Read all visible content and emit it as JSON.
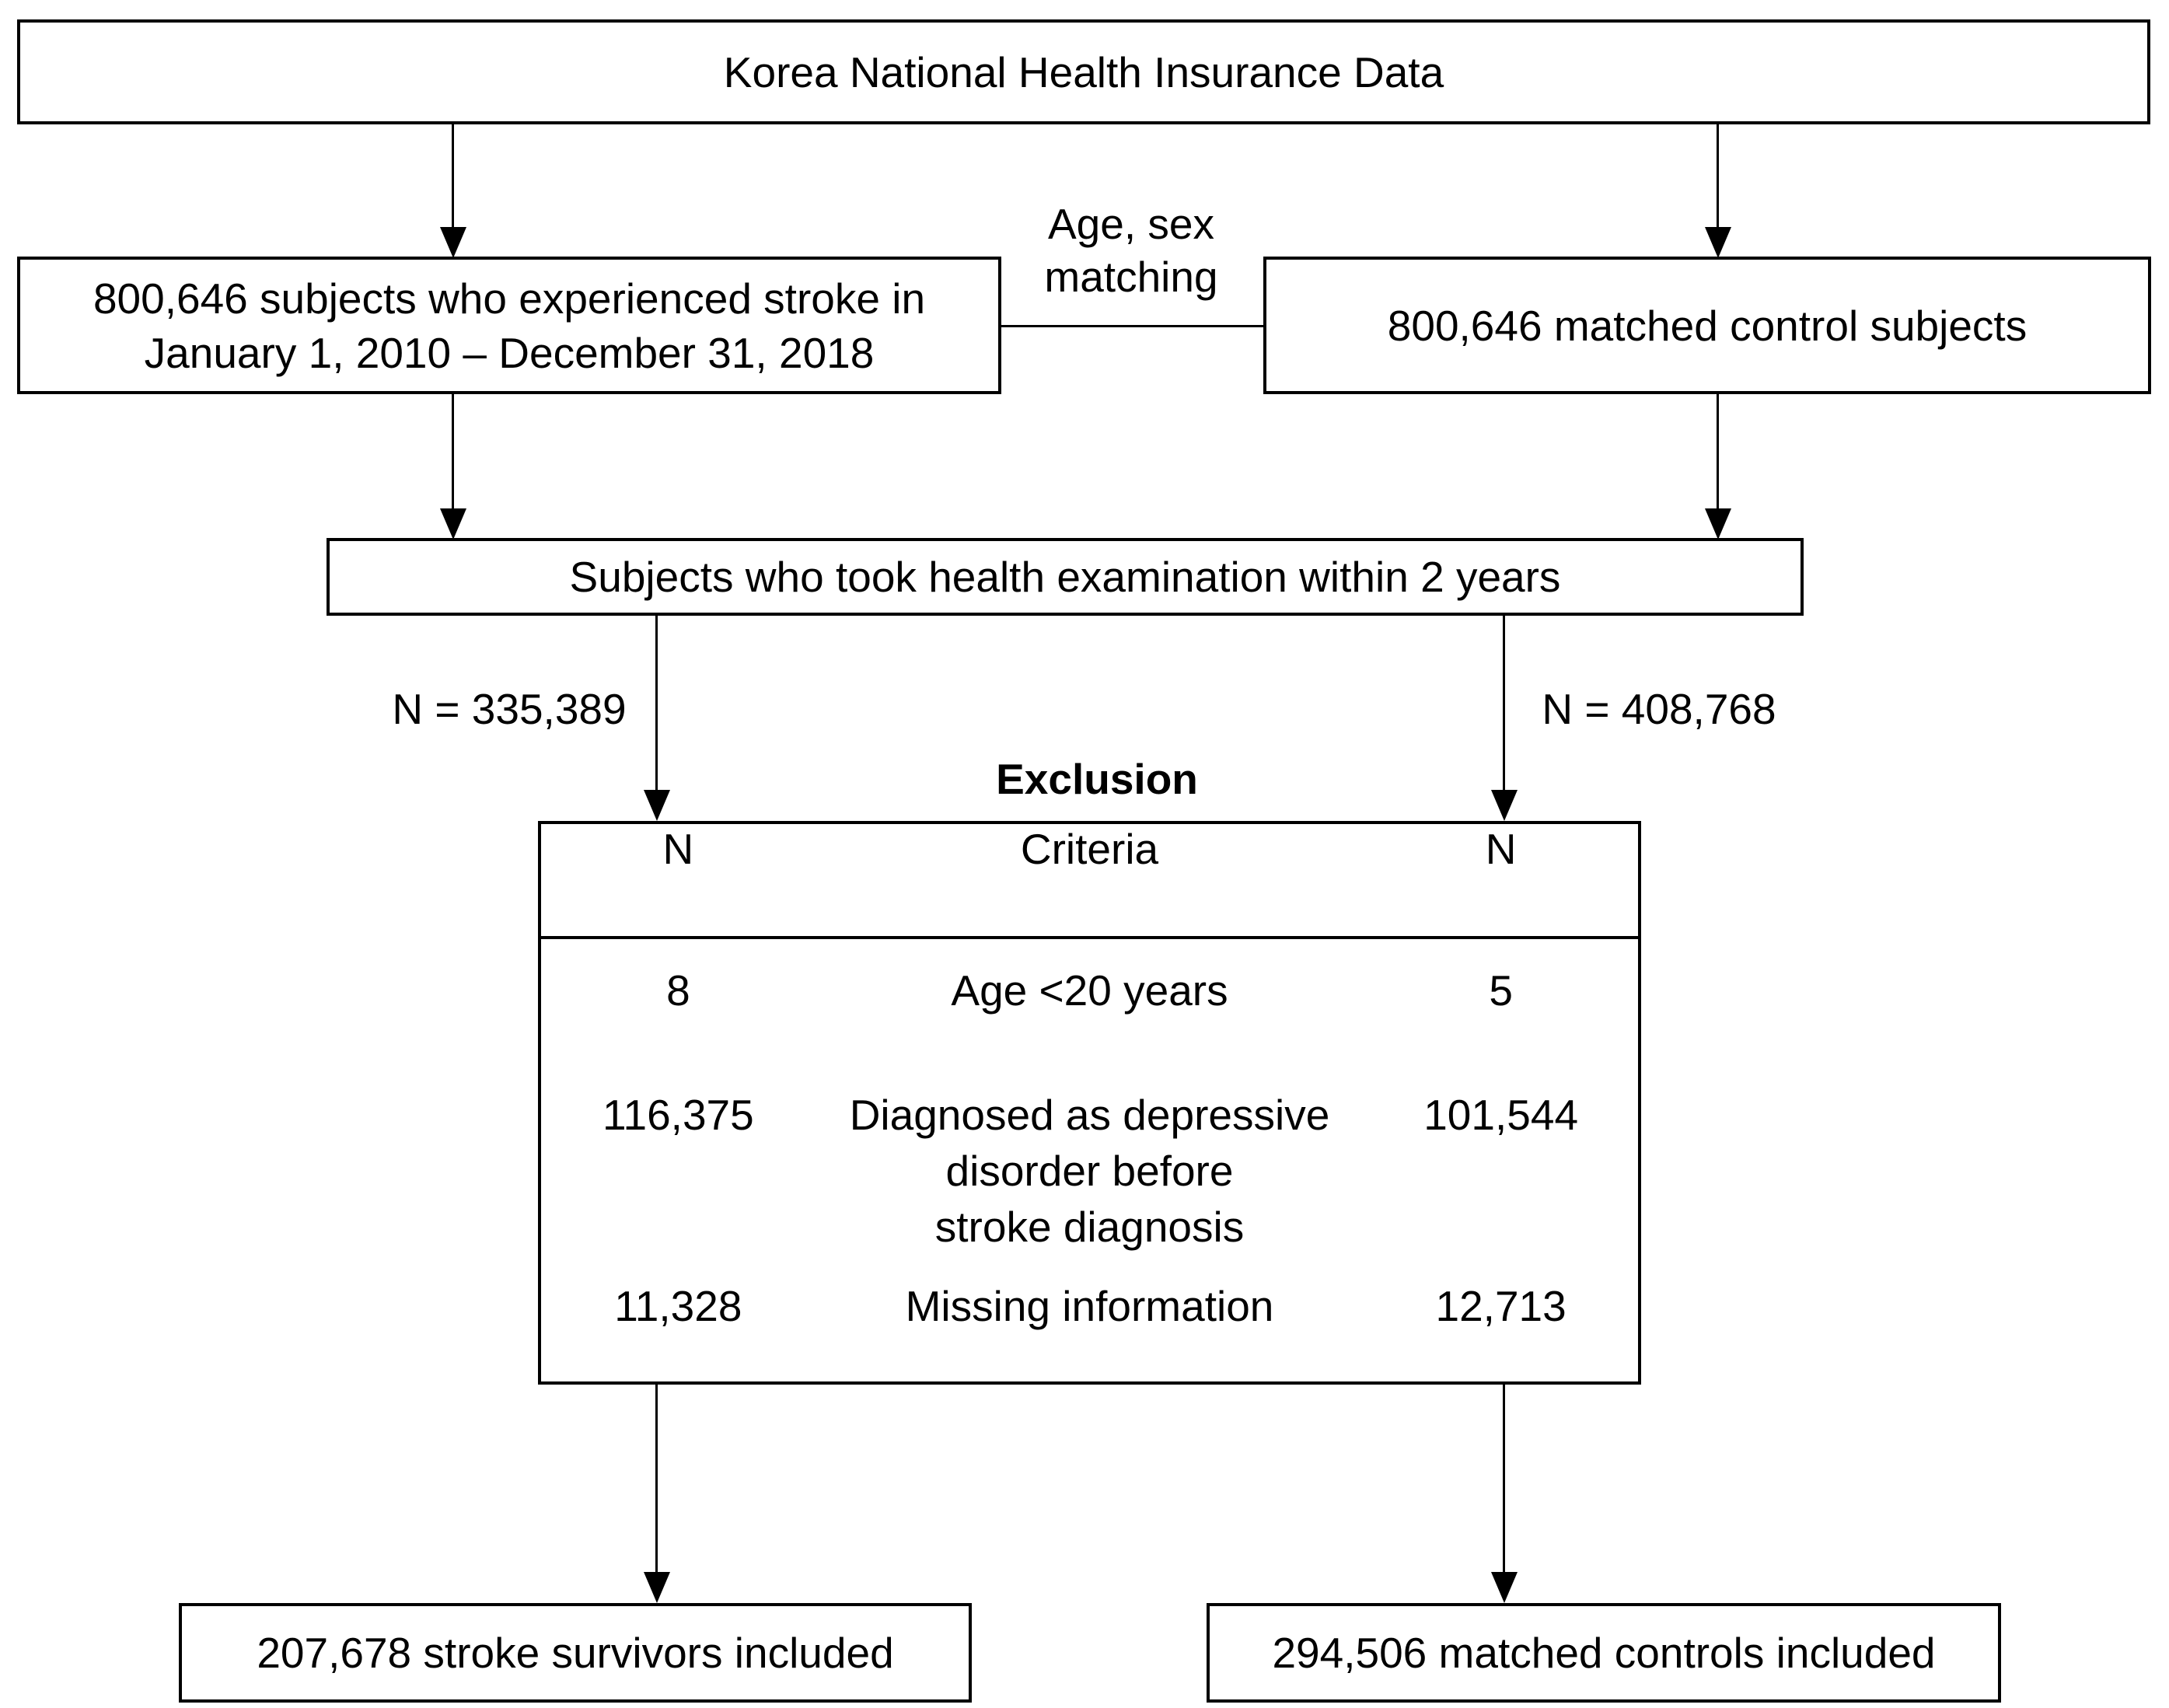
{
  "diagram": {
    "source_box": {
      "label": "Korea National Health Insurance Data"
    },
    "stroke_box": {
      "line1": "800,646 subjects who experienced stroke in",
      "line2": "January 1, 2010 – December 31, 2018"
    },
    "matching_label": {
      "line1": "Age, sex",
      "line2": "matching"
    },
    "control_box": {
      "label": "800,646 matched control subjects"
    },
    "exam_box": {
      "label": "Subjects who took health examination within 2 years"
    },
    "stroke_n_label": "N = 335,389",
    "control_n_label": "N = 408,768",
    "exclusion": {
      "title": "Exclusion",
      "headers": [
        "N",
        "Criteria",
        "N"
      ],
      "rows": [
        {
          "left_n": "8",
          "criteria": "Age <20 years",
          "right_n": "5"
        },
        {
          "left_n": "116,375",
          "criteria": "Diagnosed as depressive\ndisorder before\nstroke diagnosis",
          "right_n": "101,544"
        },
        {
          "left_n": "11,328",
          "criteria": "Missing information",
          "right_n": "12,713"
        }
      ]
    },
    "included_stroke_box": {
      "label": "207,678 stroke survivors included"
    },
    "included_control_box": {
      "label": "294,506 matched controls included"
    }
  }
}
